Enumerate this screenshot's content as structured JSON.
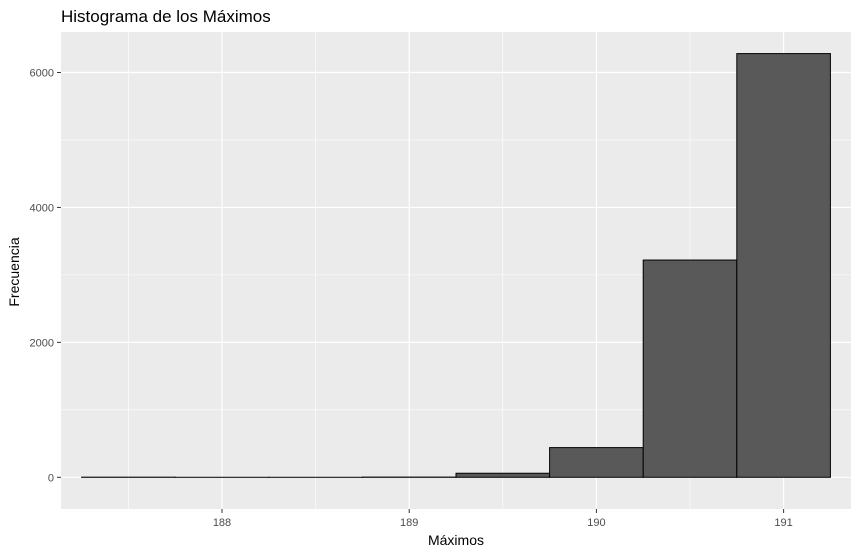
{
  "chart_data": {
    "type": "bar",
    "title": "Histograma de los Máximos",
    "xlabel": "Máximos",
    "ylabel": "Frecuencia",
    "bin_width": 0.5,
    "bins": [
      {
        "x0": 187.25,
        "x1": 187.75,
        "count": 2
      },
      {
        "x0": 187.75,
        "x1": 188.25,
        "count": 0
      },
      {
        "x0": 188.25,
        "x1": 188.75,
        "count": 0
      },
      {
        "x0": 188.75,
        "x1": 189.25,
        "count": 3
      },
      {
        "x0": 189.25,
        "x1": 189.75,
        "count": 60
      },
      {
        "x0": 189.75,
        "x1": 190.25,
        "count": 440
      },
      {
        "x0": 190.25,
        "x1": 190.75,
        "count": 3220
      },
      {
        "x0": 190.75,
        "x1": 191.25,
        "count": 6280
      }
    ],
    "xlim": [
      187.14,
      191.36
    ],
    "ylim": [
      -470,
      6600
    ],
    "x_ticks": [
      188,
      189,
      190,
      191
    ],
    "y_ticks": [
      0,
      2000,
      4000,
      6000
    ],
    "x_tick_labels": [
      "188",
      "189",
      "190",
      "191"
    ],
    "y_tick_labels": [
      "0",
      "2000",
      "4000",
      "6000"
    ],
    "grid": true,
    "colors": {
      "panel": "#ebebeb",
      "grid": "#ffffff",
      "bar_fill": "#595959",
      "bar_outline": "#000000",
      "tick_text": "#4d4d4d",
      "tick_mark": "#333333"
    }
  }
}
